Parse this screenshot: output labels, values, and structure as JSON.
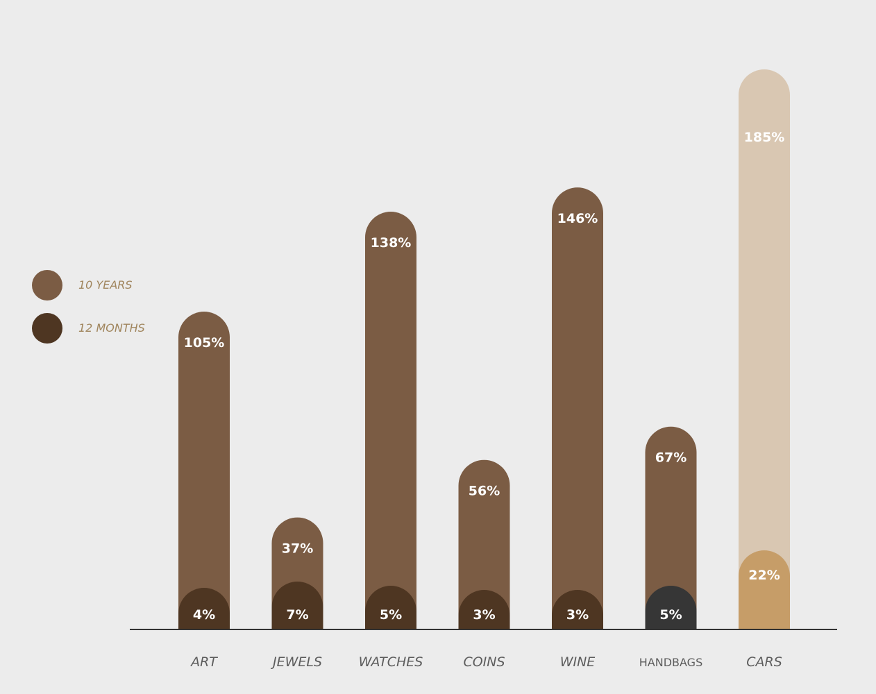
{
  "chart_data": {
    "type": "bar",
    "categories": [
      "ART",
      "JEWELS",
      "WATCHES",
      "COINS",
      "WINE",
      "HANDBAGS",
      "CARS"
    ],
    "series": [
      {
        "name": "10 YEARS",
        "values": [
          105,
          37,
          138,
          56,
          146,
          67,
          185
        ],
        "labels": [
          "105%",
          "37%",
          "138%",
          "56%",
          "146%",
          "67%",
          "185%"
        ]
      },
      {
        "name": "12 MONTHS",
        "values": [
          4,
          7,
          5,
          3,
          3,
          5,
          22
        ],
        "labels": [
          "4%",
          "7%",
          "5%",
          "3%",
          "3%",
          "5%",
          "22%"
        ]
      }
    ],
    "colors": {
      "ten_years": "#7b5c44",
      "twelve_months": "#4e3622",
      "handbags_twelve_months": "#363636",
      "cars_ten_years": "#d9c7b2",
      "cars_twelve_months": "#c69d68",
      "axis": "#333333"
    },
    "legend": {
      "position": "left",
      "items": [
        {
          "label": "10 YEARS",
          "color": "#7b5c44"
        },
        {
          "label": "12 MONTHS",
          "color": "#4e3622"
        }
      ]
    },
    "ylim": [
      0,
      185
    ],
    "grid": false
  }
}
